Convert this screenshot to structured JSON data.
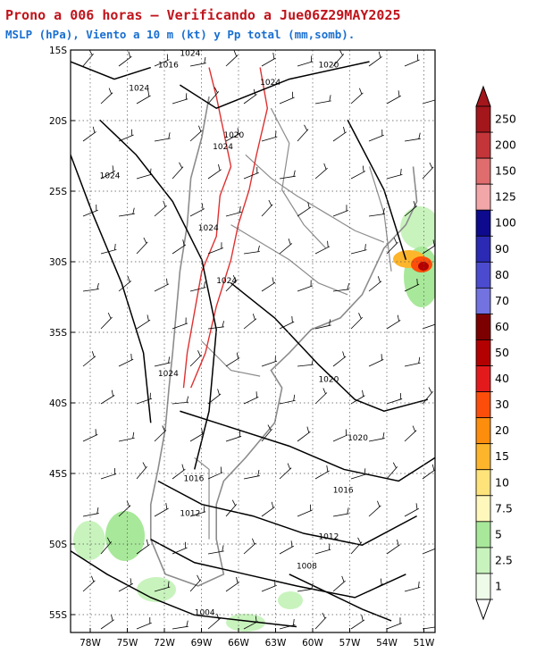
{
  "header": {
    "title": "Prono a 006 horas – Verificando a Jue06Z29MAY2025",
    "subtitle": "MSLP (hPa), Viento a 10 m (kt) y Pp total (mm,somb)."
  },
  "map": {
    "lat_ticks": [
      "15S",
      "20S",
      "25S",
      "30S",
      "35S",
      "40S",
      "45S",
      "50S",
      "55S"
    ],
    "lon_ticks": [
      "78W",
      "75W",
      "72W",
      "69W",
      "66W",
      "63W",
      "60W",
      "57W",
      "54W",
      "51W"
    ]
  },
  "isobars": [
    {
      "label": "1016"
    },
    {
      "label": "1024"
    },
    {
      "label": "1024"
    },
    {
      "label": "1024"
    },
    {
      "label": "1020"
    },
    {
      "label": "1020"
    },
    {
      "label": "1024"
    },
    {
      "label": "1024"
    },
    {
      "label": "1024"
    },
    {
      "label": "1024"
    },
    {
      "label": "1024"
    },
    {
      "label": "1020"
    },
    {
      "label": "1020"
    },
    {
      "label": "1016"
    },
    {
      "label": "1016"
    },
    {
      "label": "1012"
    },
    {
      "label": "1012"
    },
    {
      "label": "1008"
    },
    {
      "label": "1004"
    }
  ],
  "colorbar": {
    "labels": [
      "250",
      "200",
      "150",
      "125",
      "100",
      "90",
      "80",
      "70",
      "60",
      "50",
      "40",
      "30",
      "20",
      "15",
      "10",
      "7.5",
      "5",
      "2.5",
      "1"
    ],
    "colors": [
      "#a3161b",
      "#c4353a",
      "#df6d6e",
      "#f3a6a8",
      "#0d0a8e",
      "#2a2ab4",
      "#4b4bcf",
      "#7272e0",
      "#7c0000",
      "#b30000",
      "#e31a1c",
      "#fc4e0a",
      "#fd8d0c",
      "#fdb52b",
      "#fee37a",
      "#fff7bc",
      "#a8e89a",
      "#c8f3bd",
      "#edfbe8"
    ]
  },
  "colors": {
    "title": "#c0141c",
    "subtitle": "#1a6fd0",
    "isobar": "#000000",
    "terrain_contour": "#e03030",
    "borders": "#8c8c8c",
    "barbs": "#000000",
    "grid": "#555555"
  }
}
